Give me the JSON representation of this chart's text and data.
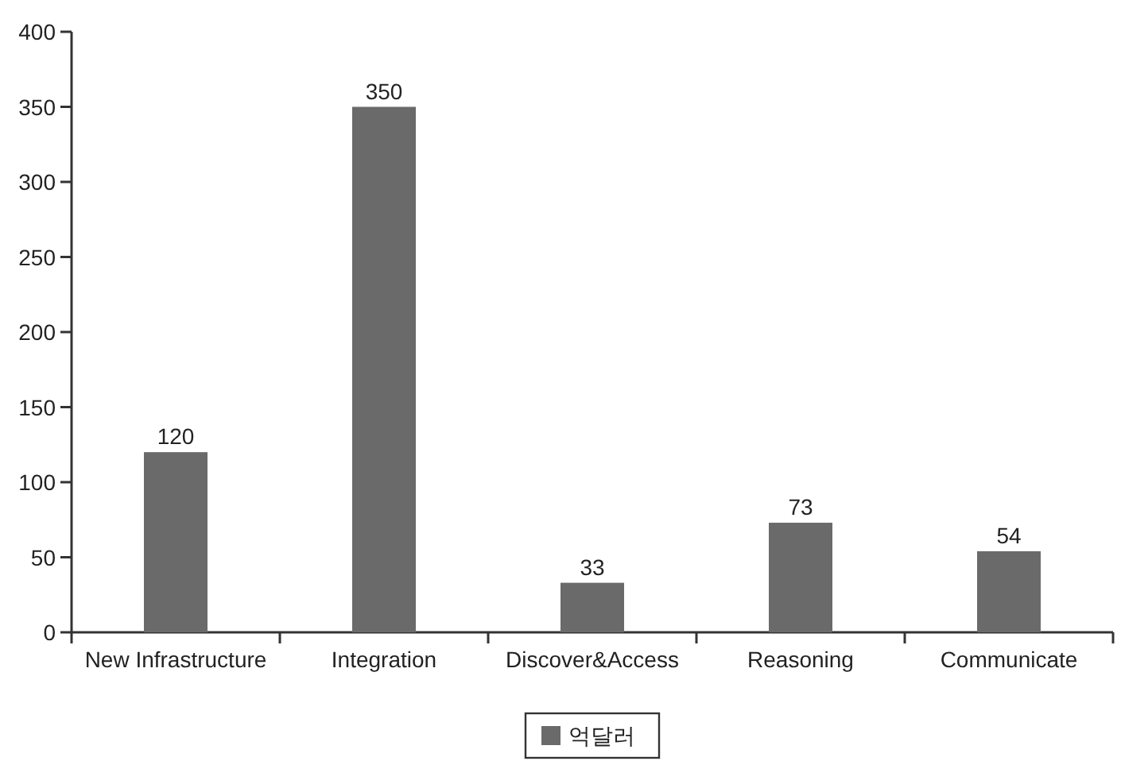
{
  "chart_data": {
    "type": "bar",
    "categories": [
      "New Infrastructure",
      "Integration",
      "Discover&Access",
      "Reasoning",
      "Communicate"
    ],
    "series": [
      {
        "name": "억달러",
        "color": "#6a6a6a",
        "values": [
          120,
          350,
          33,
          73,
          54
        ]
      }
    ],
    "ylim": [
      0,
      400
    ],
    "yticks": [
      0,
      50,
      100,
      150,
      200,
      250,
      300,
      350,
      400
    ],
    "data_labels": true,
    "legend": "bottom"
  }
}
